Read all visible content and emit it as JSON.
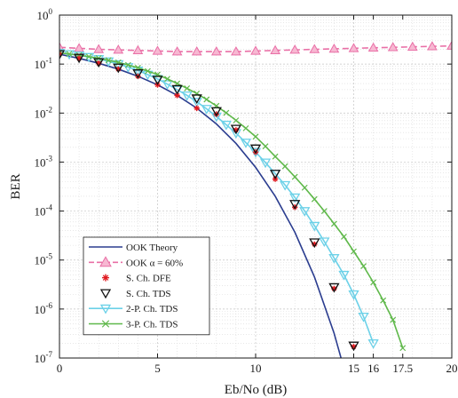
{
  "chart_data": {
    "type": "line",
    "title": "",
    "xlabel": "Eb/No (dB)",
    "ylabel": "BER",
    "xlim": [
      0,
      20
    ],
    "ylim": [
      1e-07,
      1
    ],
    "yscale": "log",
    "grid": true,
    "minor_grid": true,
    "x_ticks": [
      0,
      5,
      10,
      15,
      16,
      17.5,
      20
    ],
    "x_tick_labels": [
      "0",
      "5",
      "10",
      "15",
      "16",
      "17.5",
      "20"
    ],
    "y_tick_labels": [
      {
        "base": "10",
        "exp": "0"
      },
      {
        "base": "10",
        "exp": "-1"
      },
      {
        "base": "10",
        "exp": "-2"
      },
      {
        "base": "10",
        "exp": "-3"
      },
      {
        "base": "10",
        "exp": "-4"
      },
      {
        "base": "10",
        "exp": "-5"
      },
      {
        "base": "10",
        "exp": "-6"
      },
      {
        "base": "10",
        "exp": "-7"
      }
    ],
    "legend_position": "bottom-left",
    "series": [
      {
        "name": "OOK Theory",
        "color": "#2b3d8f",
        "style": "solid",
        "marker": "none",
        "x": [
          0,
          1,
          2,
          3,
          4,
          5,
          6,
          7,
          8,
          9,
          10,
          11,
          12,
          13,
          14,
          15,
          15.4
        ],
        "y": [
          0.159,
          0.131,
          0.104,
          0.0789,
          0.0565,
          0.0377,
          0.023,
          0.0126,
          0.006,
          0.0024,
          0.00078,
          0.0002,
          3.7e-05,
          4.5e-06,
          3.2e-07,
          1.2e-08,
          1e-07
        ]
      },
      {
        "name": "OOK α = 60%",
        "color": "#e96fa6",
        "style": "dashed",
        "marker": "triangle-up",
        "x": [
          0,
          1,
          2,
          3,
          4,
          5,
          6,
          7,
          8,
          9,
          10,
          11,
          12,
          13,
          14,
          15,
          16,
          17,
          18,
          19,
          20
        ],
        "y": [
          0.22,
          0.21,
          0.2,
          0.195,
          0.19,
          0.185,
          0.18,
          0.18,
          0.18,
          0.18,
          0.185,
          0.19,
          0.195,
          0.2,
          0.205,
          0.21,
          0.215,
          0.22,
          0.225,
          0.23,
          0.235
        ]
      },
      {
        "name": "S. Ch. DFE",
        "color": "#e0191f",
        "style": "none",
        "marker": "star",
        "x": [
          0,
          1,
          2,
          3,
          4,
          5,
          6,
          7,
          8,
          9,
          10,
          11,
          12,
          13,
          14,
          15
        ],
        "y": [
          0.159,
          0.131,
          0.104,
          0.0789,
          0.0565,
          0.0377,
          0.023,
          0.0126,
          0.0095,
          0.0045,
          0.0016,
          0.00045,
          0.00012,
          2.1e-05,
          2.6e-06,
          1.7e-07
        ]
      },
      {
        "name": "S. Ch. TDS",
        "color": "#111111",
        "style": "none",
        "marker": "triangle-down",
        "x": [
          0,
          1,
          2,
          3,
          4,
          5,
          6,
          7,
          8,
          9,
          10,
          11,
          12,
          13,
          14,
          15
        ],
        "y": [
          0.16,
          0.135,
          0.11,
          0.085,
          0.065,
          0.048,
          0.031,
          0.02,
          0.011,
          0.0048,
          0.0019,
          0.00058,
          0.00014,
          2.3e-05,
          2.8e-06,
          1.8e-07
        ]
      },
      {
        "name": "2-P. Ch. TDS",
        "color": "#6cd1e8",
        "style": "solid",
        "marker": "triangle-down",
        "x": [
          0,
          0.5,
          1,
          1.5,
          2,
          2.5,
          3,
          3.5,
          4,
          4.5,
          5,
          5.5,
          6,
          6.5,
          7,
          7.5,
          8,
          8.5,
          9,
          9.5,
          10,
          10.5,
          11,
          11.5,
          12,
          12.5,
          13,
          13.5,
          14,
          14.5,
          15,
          15.5,
          16
        ],
        "y": [
          0.17,
          0.16,
          0.15,
          0.14,
          0.127,
          0.114,
          0.1,
          0.087,
          0.074,
          0.061,
          0.05,
          0.039,
          0.03,
          0.023,
          0.017,
          0.0122,
          0.0085,
          0.0058,
          0.0039,
          0.0025,
          0.0016,
          0.00098,
          0.00058,
          0.00034,
          0.00019,
          0.0001,
          5e-05,
          2.4e-05,
          1.1e-05,
          5e-06,
          2e-06,
          7e-07,
          2e-07
        ]
      },
      {
        "name": "3-P. Ch. TDS",
        "color": "#5fb84a",
        "style": "solid",
        "marker": "x",
        "x": [
          0,
          0.5,
          1,
          1.5,
          2,
          2.5,
          3,
          3.5,
          4,
          4.5,
          5,
          5.5,
          6,
          6.5,
          7,
          7.5,
          8,
          8.5,
          9,
          9.5,
          10,
          10.5,
          11,
          11.5,
          12,
          12.5,
          13,
          13.5,
          14,
          14.5,
          15,
          15.5,
          16,
          16.5,
          17,
          17.5
        ],
        "y": [
          0.17,
          0.161,
          0.152,
          0.142,
          0.132,
          0.12,
          0.108,
          0.096,
          0.084,
          0.072,
          0.061,
          0.05,
          0.04,
          0.032,
          0.025,
          0.019,
          0.014,
          0.0101,
          0.0071,
          0.0049,
          0.0033,
          0.0021,
          0.0013,
          0.00082,
          0.0005,
          0.0003,
          0.000175,
          0.0001,
          5.5e-05,
          3e-05,
          1.5e-05,
          7.5e-06,
          3.5e-06,
          1.5e-06,
          6e-07,
          1.6e-07
        ]
      }
    ]
  }
}
